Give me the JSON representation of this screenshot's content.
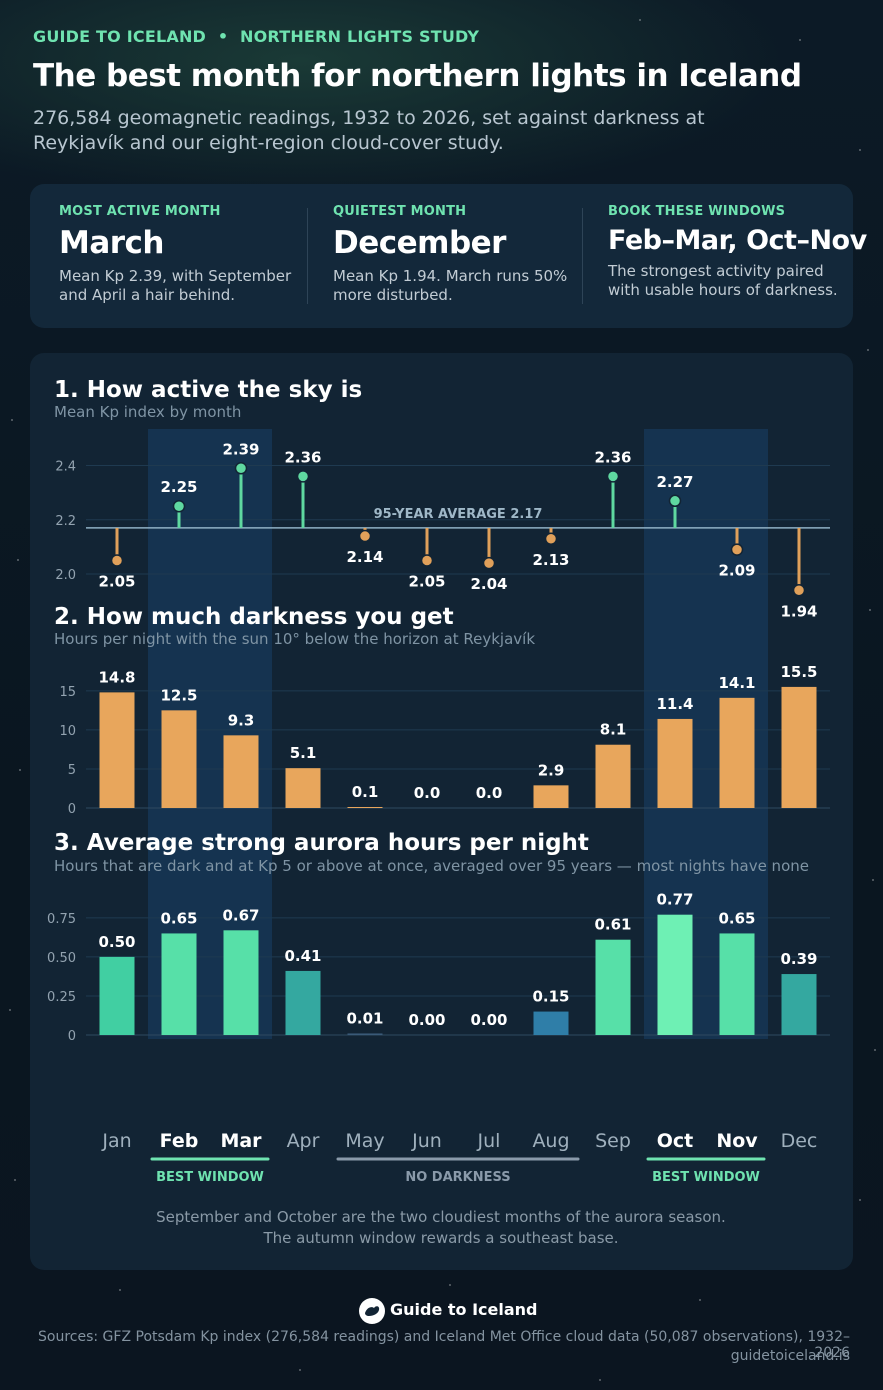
{
  "header": {
    "brand_tag": "GUIDE TO ICELAND",
    "study_tag": "NORTHERN LIGHTS STUDY",
    "separator": "•",
    "title": "The best month for northern lights in Iceland",
    "subtitle": "276,584 geomagnetic readings, 1932 to 2026, set against darkness at Reykjavík and our eight-region cloud-cover study."
  },
  "kpis": [
    {
      "label": "MOST ACTIVE MONTH",
      "value": "March",
      "desc": "Mean Kp 2.39, with September and April a hair behind."
    },
    {
      "label": "QUIETEST MONTH",
      "value": "December",
      "desc": "Mean Kp 1.94. March runs 50% more disturbed."
    },
    {
      "label": "BOOK THESE WINDOWS",
      "value": "Feb–Mar, Oct–Nov",
      "desc": "The strongest activity paired with usable hours of darkness."
    }
  ],
  "months": [
    "Jan",
    "Feb",
    "Mar",
    "Apr",
    "May",
    "Jun",
    "Jul",
    "Aug",
    "Sep",
    "Oct",
    "Nov",
    "Dec"
  ],
  "windows": [
    {
      "label": "BEST WINDOW",
      "from": 1,
      "to": 2,
      "kind": "best"
    },
    {
      "label": "NO DARKNESS",
      "from": 4,
      "to": 7,
      "kind": "none"
    },
    {
      "label": "BEST WINDOW",
      "from": 9,
      "to": 10,
      "kind": "best"
    }
  ],
  "colors": {
    "accent_green": "#6fe3b0",
    "dark_orange": "#e8a65c",
    "kp_above": "#5fd8a0",
    "kp_below": "#e0a05a",
    "highlight_band": "#17385a"
  },
  "chart_data": [
    {
      "type": "lollipop",
      "title": "1. How active the sky is",
      "subtitle": "Mean Kp index by month",
      "categories": [
        "Jan",
        "Feb",
        "Mar",
        "Apr",
        "May",
        "Jun",
        "Jul",
        "Aug",
        "Sep",
        "Oct",
        "Nov",
        "Dec"
      ],
      "values": [
        2.05,
        2.25,
        2.39,
        2.36,
        2.14,
        2.05,
        2.04,
        2.13,
        2.36,
        2.27,
        2.09,
        1.94
      ],
      "labels": [
        "2.05",
        "2.25",
        "2.39",
        "2.36",
        "2.14",
        "2.05",
        "2.04",
        "2.13",
        "2.36",
        "2.27",
        "2.09",
        "1.94"
      ],
      "baseline": 2.17,
      "baseline_label": "95-YEAR AVERAGE 2.17",
      "yticks": [
        "2.0",
        "2.2",
        "2.4"
      ],
      "ylim": [
        1.93,
        2.52
      ]
    },
    {
      "type": "bar",
      "title": "2. How much darkness you get",
      "subtitle": "Hours per night with the sun 10° below the horizon at Reykjavík",
      "categories": [
        "Jan",
        "Feb",
        "Mar",
        "Apr",
        "May",
        "Jun",
        "Jul",
        "Aug",
        "Sep",
        "Oct",
        "Nov",
        "Dec"
      ],
      "values": [
        14.8,
        12.5,
        9.3,
        5.1,
        0.1,
        0.0,
        0.0,
        2.9,
        8.1,
        11.4,
        14.1,
        15.5
      ],
      "labels": [
        "14.8",
        "12.5",
        "9.3",
        "5.1",
        "0.1",
        "0.0",
        "0.0",
        "2.9",
        "8.1",
        "11.4",
        "14.1",
        "15.5"
      ],
      "yticks": [
        "0",
        "5",
        "10",
        "15"
      ],
      "ylim": [
        0,
        16
      ]
    },
    {
      "type": "bar",
      "title": "3. Average strong aurora hours per night",
      "subtitle": "Hours that are dark and at Kp 5 or above at once, averaged over 95 years — most nights have none",
      "categories": [
        "Jan",
        "Feb",
        "Mar",
        "Apr",
        "May",
        "Jun",
        "Jul",
        "Aug",
        "Sep",
        "Oct",
        "Nov",
        "Dec"
      ],
      "values": [
        0.5,
        0.65,
        0.67,
        0.41,
        0.01,
        0.0,
        0.0,
        0.15,
        0.61,
        0.77,
        0.65,
        0.39
      ],
      "labels": [
        "0.50",
        "0.65",
        "0.67",
        "0.41",
        "0.01",
        "0.00",
        "0.00",
        "0.15",
        "0.61",
        "0.77",
        "0.65",
        "0.39"
      ],
      "yticks": [
        "0",
        "0.25",
        "0.50",
        "0.75"
      ],
      "ylim": [
        0,
        0.8
      ]
    }
  ],
  "footnote": {
    "line1": "September and October are the two cloudiest months of the aurora season.",
    "line2": "The autumn window rewards a southeast base."
  },
  "footer": {
    "logo_text": "Guide to Iceland",
    "sources": "Sources: GFZ Potsdam Kp index (276,584 readings) and Iceland Met Office cloud data (50,087 observations), 1932–2026",
    "site": "guidetoiceland.is"
  }
}
